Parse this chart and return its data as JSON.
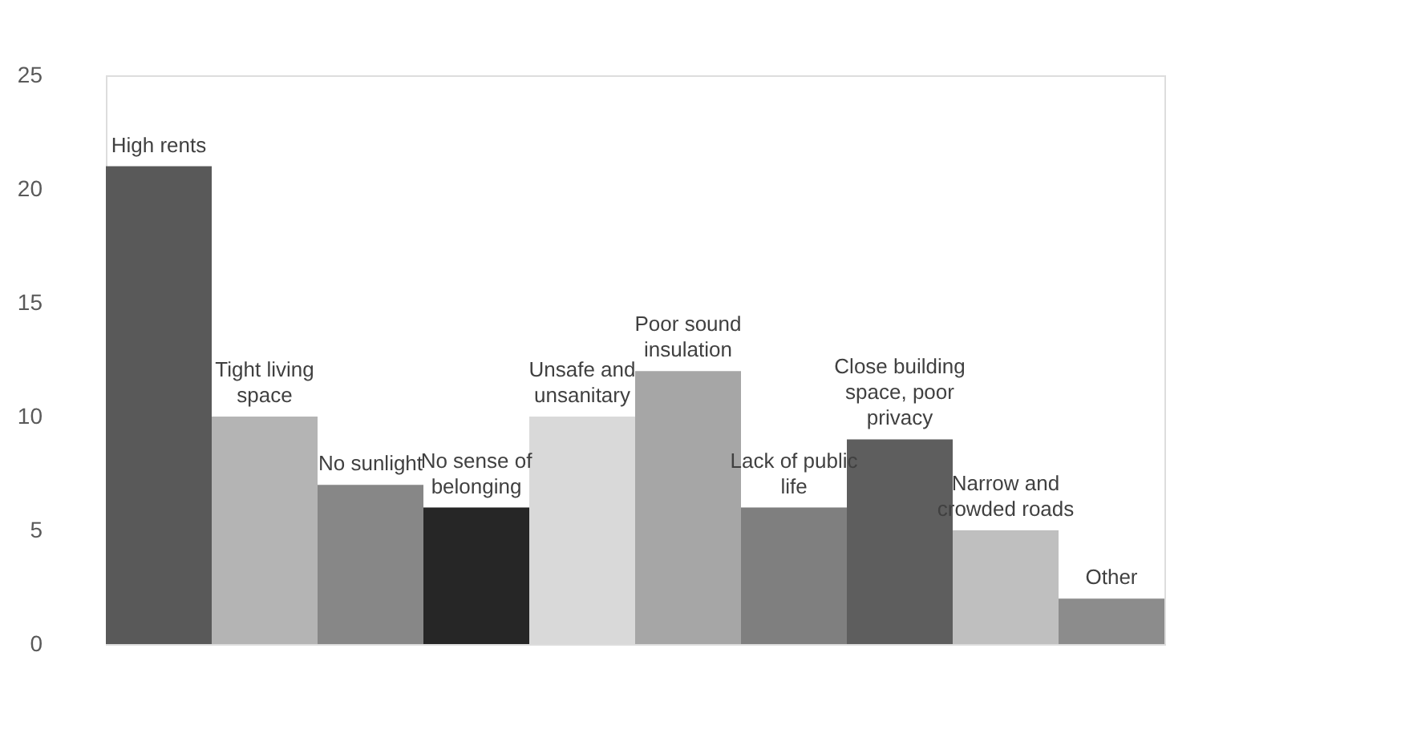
{
  "chart_data": {
    "type": "bar",
    "categories": [
      "High rents",
      "Tight living space",
      "No sunlight",
      "No sense of belonging",
      "Unsafe and unsanitary",
      "Poor sound insulation",
      "Lack of public life",
      "Close building space, poor privacy",
      "Narrow and crowded roads",
      "Other"
    ],
    "values": [
      21,
      10,
      7,
      6,
      10,
      12,
      6,
      9,
      5,
      2
    ],
    "colors": [
      "#595959",
      "#b4b4b4",
      "#878787",
      "#262626",
      "#d9d9d9",
      "#a6a6a6",
      "#7f7f7f",
      "#5e5e5e",
      "#bfbfbf",
      "#8c8c8c"
    ],
    "ylim": [
      0,
      25
    ],
    "yticks": [
      0,
      5,
      10,
      15,
      20,
      25
    ],
    "grid": false,
    "tick_labels": "y"
  }
}
